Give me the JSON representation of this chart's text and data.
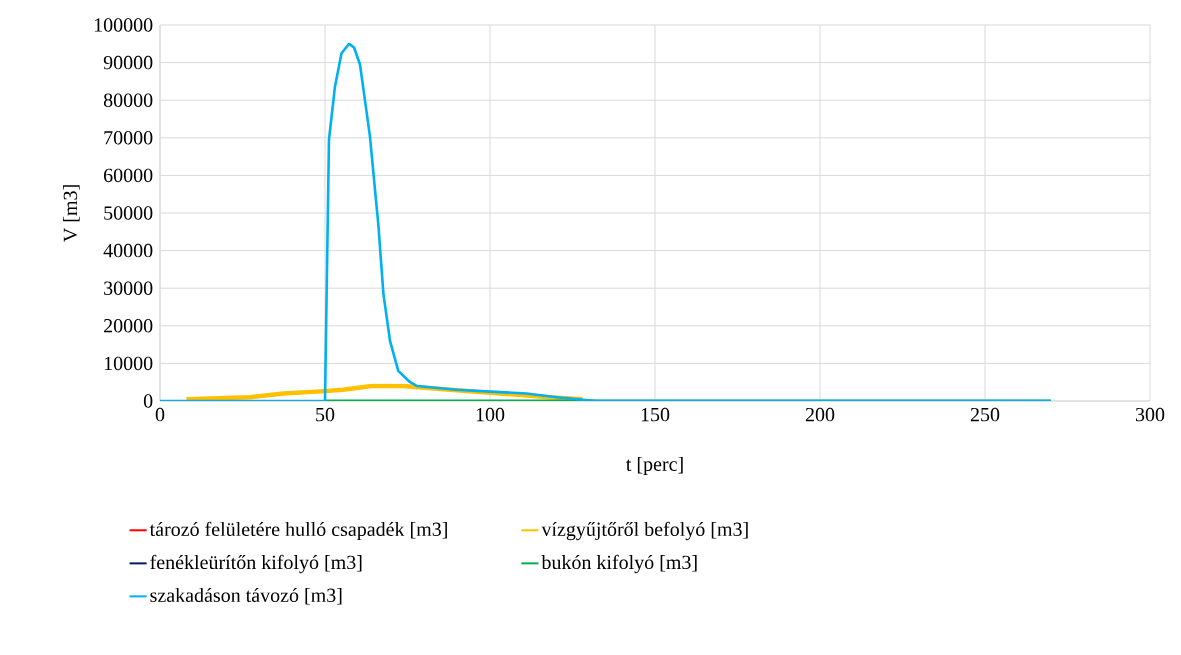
{
  "chart_data": {
    "type": "line",
    "xlabel": "t [perc]",
    "ylabel": "V [m3]",
    "xlim": [
      0,
      300
    ],
    "xticks": [
      0,
      50,
      100,
      150,
      200,
      250,
      300
    ],
    "ylim": [
      0,
      100000
    ],
    "yticks": [
      0,
      10000,
      20000,
      30000,
      40000,
      50000,
      60000,
      70000,
      80000,
      90000,
      100000
    ],
    "grid": true,
    "legend": "bottom",
    "marker": "none",
    "line_style": "solid",
    "series": [
      {
        "name": "tározó felületére hulló csapadék [m3]",
        "color": "#ff0000"
      },
      {
        "name": "vízgyűjtőről befolyó [m3]",
        "color": "#ffc000",
        "x": [
          8,
          27.3,
          37.4,
          47.5,
          55.5,
          64.1,
          73.6,
          87.9,
          103,
          118,
          128
        ],
        "values": [
          500,
          1000,
          2000,
          2500,
          3000,
          4000,
          4000,
          3000,
          2000,
          1000,
          500
        ]
      },
      {
        "name": "fenékleürítőn kifolyó [m3]",
        "color": "#002060"
      },
      {
        "name": "bukón kifolyó [m3]",
        "color": "#00b050",
        "x": [
          50,
          270
        ],
        "values": [
          0,
          0
        ]
      },
      {
        "name": "szakadáson távozó [m3]",
        "color": "#00b0f0",
        "x": [
          0,
          50,
          51.2,
          53,
          55,
          57.3,
          58.8,
          60.6,
          63.6,
          66.2,
          67.7,
          69.7,
          72.2,
          75.8,
          77.8,
          89.9,
          100,
          111.1,
          120.2,
          132.3,
          270
        ],
        "values": [
          0,
          0,
          69500,
          83500,
          92500,
          95000,
          94000,
          89500,
          70500,
          46500,
          28500,
          16000,
          8000,
          5000,
          4000,
          3000,
          2500,
          2000,
          1000,
          0,
          0
        ]
      }
    ]
  }
}
